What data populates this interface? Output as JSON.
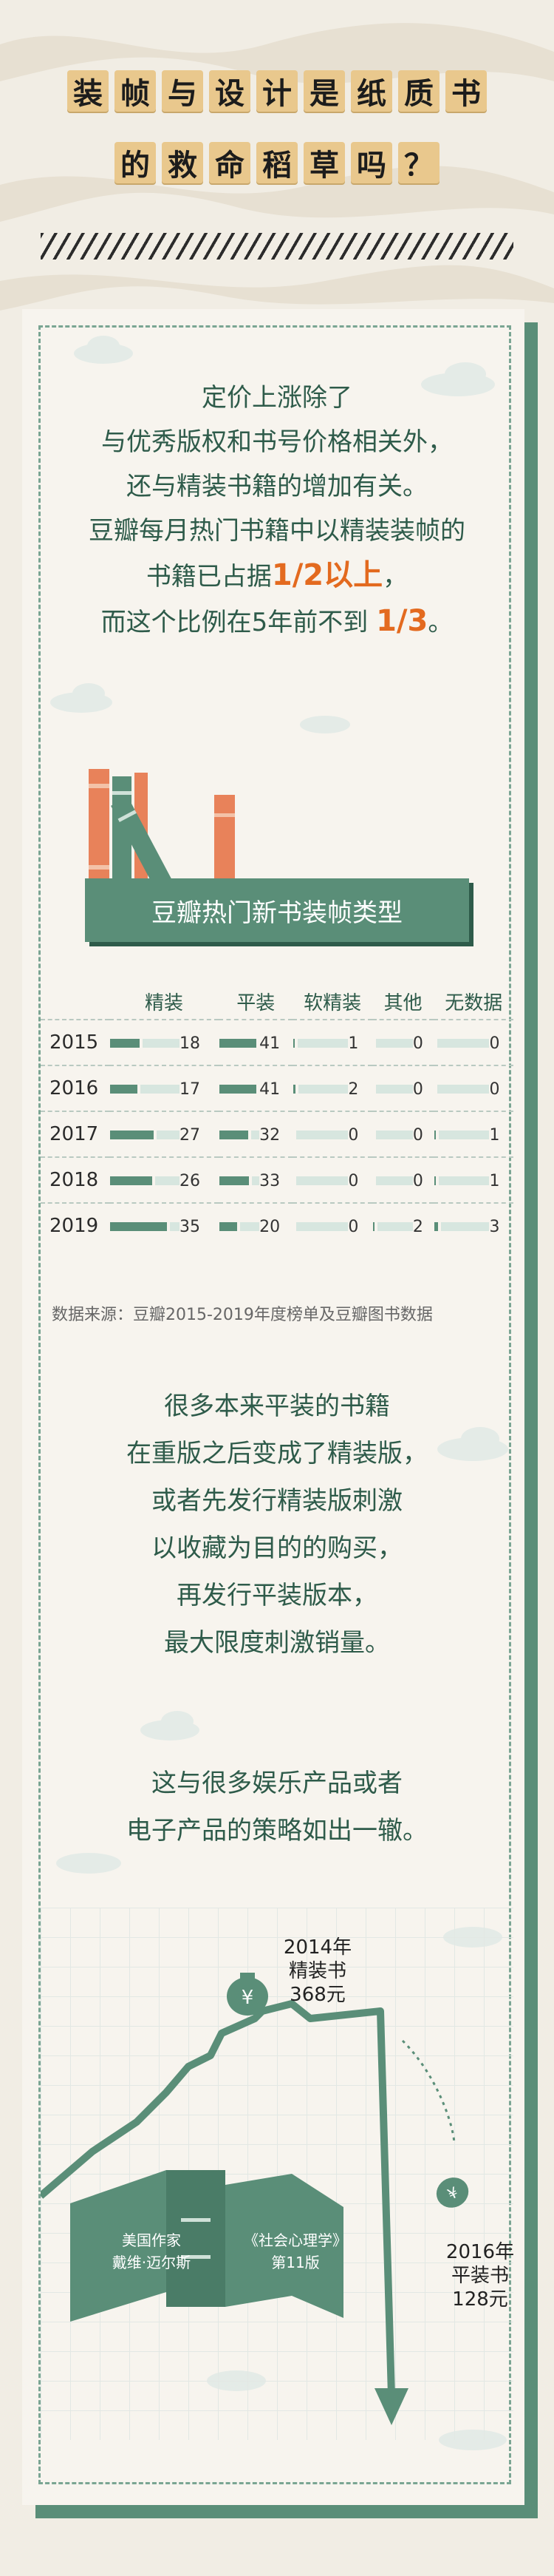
{
  "title": {
    "line1": [
      "装",
      "帧",
      "与",
      "设",
      "计",
      "是",
      "纸",
      "质",
      "书"
    ],
    "line2": [
      "的",
      "救",
      "命",
      "稻",
      "草",
      "吗",
      "？"
    ]
  },
  "intro": {
    "lines": [
      "定价上涨除了",
      "与优秀版权和书号价格相关外，",
      "还与精装书籍的增加有关。",
      "豆瓣每月热门书籍中以精装装帧的"
    ],
    "line5_pre": "书籍已占据",
    "line5_hl": "1/2以上",
    "line5_post": "，",
    "line6_pre": "而这个比例在5年前不到 ",
    "line6_hl": "1/3",
    "line6_post": "。"
  },
  "banner": "豆瓣热门新书装帧类型",
  "table": {
    "headers": [
      "精装",
      "平装",
      "软精装",
      "其他",
      "无数据"
    ],
    "rows": [
      {
        "year": "2015",
        "values": [
          18,
          41,
          1,
          0,
          0
        ]
      },
      {
        "year": "2016",
        "values": [
          17,
          41,
          2,
          0,
          0
        ]
      },
      {
        "year": "2017",
        "values": [
          27,
          32,
          0,
          0,
          1
        ]
      },
      {
        "year": "2018",
        "values": [
          26,
          33,
          0,
          0,
          1
        ]
      },
      {
        "year": "2019",
        "values": [
          35,
          20,
          0,
          2,
          3
        ]
      }
    ]
  },
  "source": "数据来源：豆瓣2015-2019年度榜单及豆瓣图书数据",
  "body2": [
    "很多本来平装的书籍",
    "在重版之后变成了精装版，",
    "或者先发行精装版刺激",
    "以收藏为目的的购买，",
    "再发行平装版本，",
    "最大限度刺激销量。"
  ],
  "body3": [
    "这与很多娱乐产品或者",
    "电子产品的策略如出一辙。"
  ],
  "book": {
    "left_lines": [
      "美国作家",
      "戴维·迈尔斯"
    ],
    "right_lines": [
      "《社会心理学》",
      "第11版"
    ]
  },
  "price_high": [
    "2014年",
    "精装书",
    "368元"
  ],
  "price_low": [
    "2016年",
    "平装书",
    "128元"
  ],
  "money_symbol": "¥",
  "colors": {
    "green": "#5a8e78",
    "dark_green": "#2e5b4a",
    "orange": "#e36a1f",
    "tile": "#e9c88d"
  }
}
